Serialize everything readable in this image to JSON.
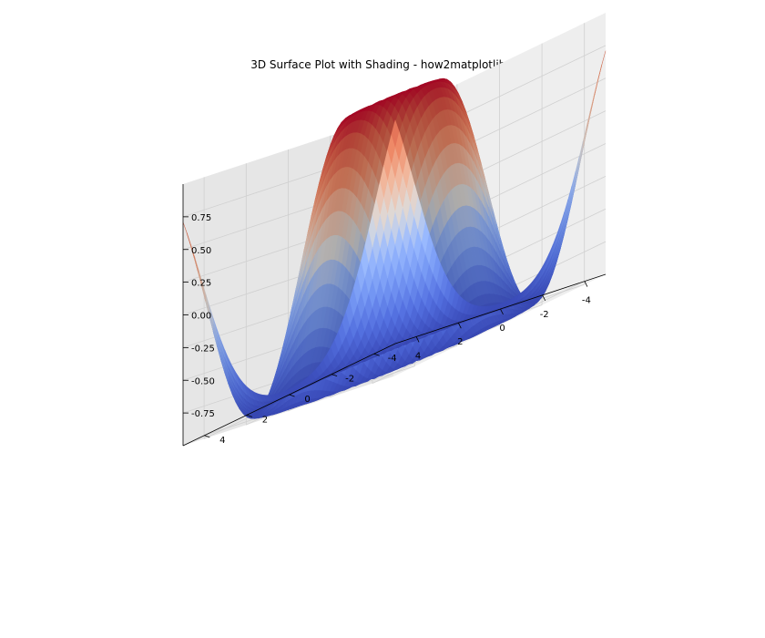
{
  "chart_data": {
    "type": "surface",
    "title": "3D Surface Plot with Shading - how2matplotlib.com",
    "xlabel": "",
    "ylabel": "",
    "zlabel": "",
    "function": "z = sin(sqrt(x^2 + y^2))",
    "colormap": "coolwarm",
    "grid": true,
    "x_range": [
      -5,
      5
    ],
    "y_range": [
      -5,
      5
    ],
    "z_range": [
      -1,
      1
    ],
    "x_ticks": [
      -4,
      -2,
      0,
      2,
      4
    ],
    "y_ticks": [
      -4,
      -2,
      0,
      2,
      4
    ],
    "z_ticks": [
      -0.75,
      -0.5,
      -0.25,
      0.0,
      0.25,
      0.5,
      0.75
    ],
    "x_tick_labels": [
      "-4",
      "-2",
      "0",
      "2",
      "4"
    ],
    "y_tick_labels": [
      "-4",
      "-2",
      "0",
      "2",
      "4"
    ],
    "z_tick_labels": [
      "-0.75",
      "-0.50",
      "-0.25",
      "0.00",
      "0.25",
      "0.50",
      "0.75"
    ],
    "elevation_deg": 30,
    "azimuth_deg": -60
  }
}
